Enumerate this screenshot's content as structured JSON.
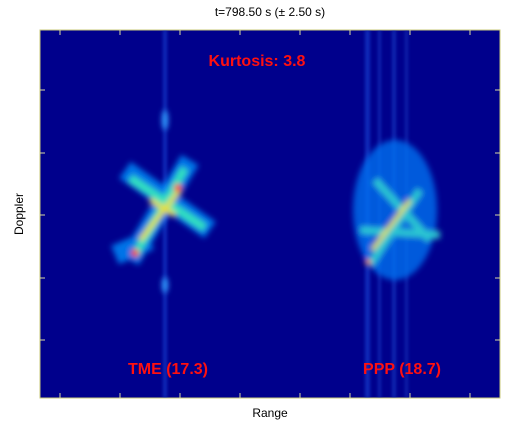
{
  "chart_data": {
    "type": "heatmap",
    "title": "t=798.50 s (± 2.50 s)",
    "xlabel": "Range",
    "ylabel": "Doppler",
    "annotations": [
      "Kurtosis: 3.8",
      "TME (17.3)",
      "PPP (18.7)"
    ]
  }
}
